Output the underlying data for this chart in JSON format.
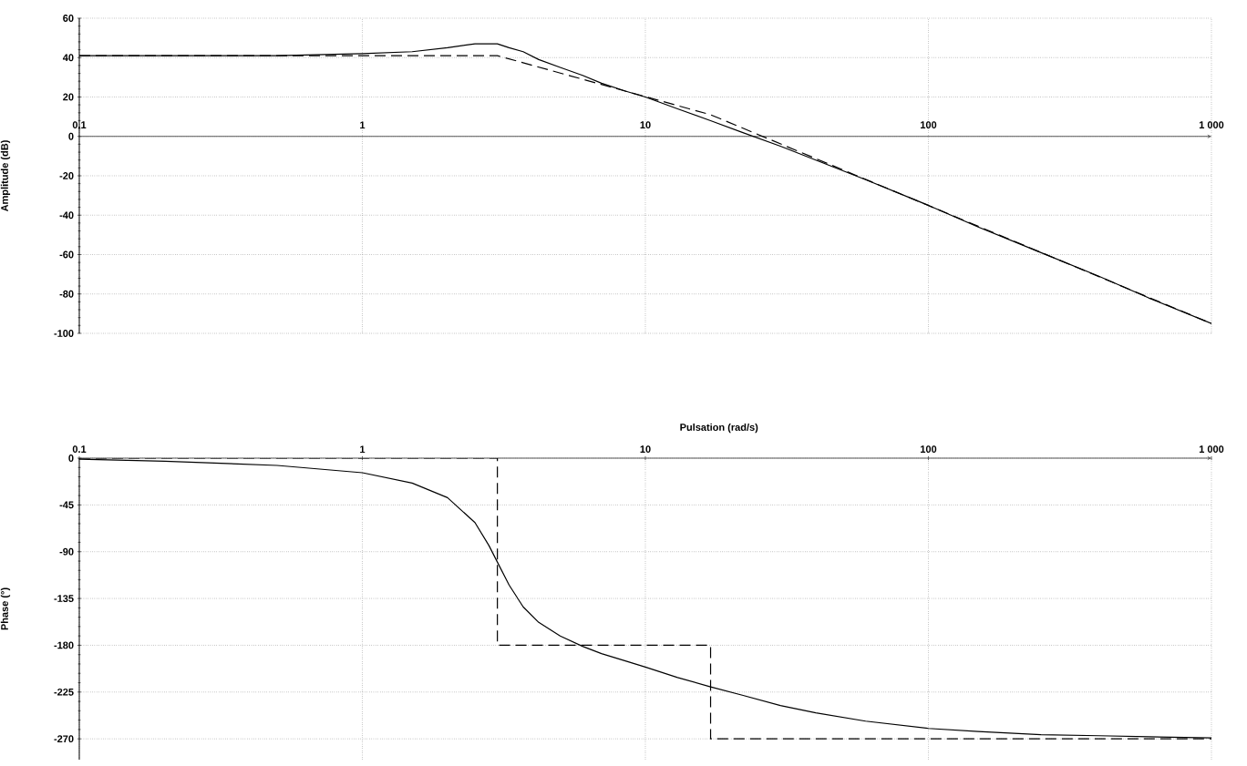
{
  "chart_data": [
    {
      "type": "line",
      "ylabel": "Amplitude (dB)",
      "log": "x",
      "grid": true,
      "xlim": [
        0.1,
        1000
      ],
      "ylim": [
        -100,
        60
      ],
      "xticks": [
        0.1,
        1,
        10,
        100,
        {
          "value": 1000,
          "label": "1 000"
        }
      ],
      "yticks": [
        -100,
        -80,
        -60,
        -40,
        -20,
        0,
        20,
        40,
        60
      ],
      "series": [
        {
          "color": "#000000",
          "line_style": "solid",
          "x": [
            0.1,
            0.2,
            0.5,
            1,
            1.5,
            2,
            2.5,
            2.8,
            3,
            3.3,
            3.7,
            4.2,
            5,
            6,
            7,
            8.5,
            10,
            13,
            17,
            22,
            30,
            40,
            60,
            100,
            150,
            250,
            400,
            600,
            1000
          ],
          "values": [
            41,
            41,
            41,
            42,
            43,
            45,
            47,
            47,
            47,
            45,
            43,
            39,
            35,
            31,
            27,
            23,
            20,
            14,
            8,
            2,
            -5,
            -12,
            -22,
            -35,
            -46,
            -59,
            -71,
            -82,
            -95
          ]
        },
        {
          "color": "#000000",
          "line_style": "dashed",
          "x": [
            0.1,
            3,
            17,
            1000
          ],
          "values": [
            41,
            41,
            11,
            -95
          ]
        }
      ]
    },
    {
      "type": "line",
      "ylabel": "Phase (°)",
      "xlabel": "Pulsation (rad/s)",
      "log": "x",
      "grid": true,
      "xlim": [
        0.1,
        1000
      ],
      "ylim": [
        -290,
        0
      ],
      "xticks": [
        0.1,
        1,
        10,
        100,
        {
          "value": 1000,
          "label": "1 000"
        }
      ],
      "yticks": [
        -270,
        -225,
        -180,
        -135,
        -90,
        -45,
        0
      ],
      "series": [
        {
          "color": "#000000",
          "line_style": "solid",
          "x": [
            0.1,
            0.2,
            0.5,
            1,
            1.5,
            2,
            2.5,
            2.8,
            3,
            3.3,
            3.7,
            4.2,
            5,
            6,
            7,
            8.5,
            10,
            13,
            17,
            22,
            30,
            40,
            60,
            100,
            150,
            250,
            400,
            600,
            1000
          ],
          "values": [
            -1,
            -3,
            -7,
            -14,
            -24,
            -38,
            -62,
            -84,
            -100,
            -122,
            -143,
            -158,
            -171,
            -181,
            -188,
            -195,
            -201,
            -211,
            -220,
            -228,
            -238,
            -245,
            -253,
            -260,
            -263,
            -266,
            -267,
            -268,
            -269
          ]
        },
        {
          "color": "#000000",
          "line_style": "dashed",
          "x": [
            0.1,
            3,
            3,
            17,
            17,
            1000
          ],
          "values": [
            0,
            0,
            -180,
            -180,
            -270,
            -270
          ]
        }
      ]
    }
  ]
}
